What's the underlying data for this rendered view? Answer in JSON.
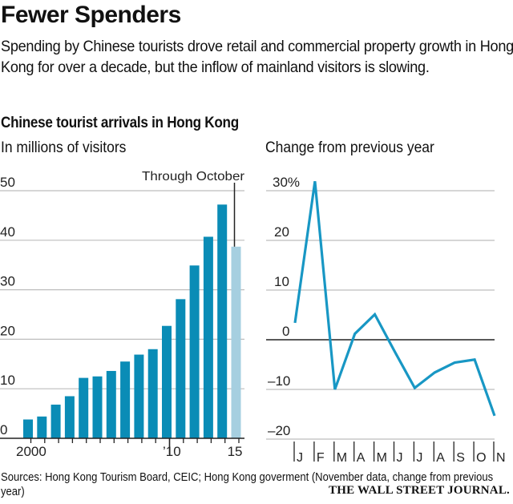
{
  "header": {
    "title": "Fewer Spenders",
    "subtitle": "Spending by Chinese tourists drove retail and commercial property growth in Hong Kong for over a decade, but the inflow of mainland visitors is slowing.",
    "chart_title": "Chinese tourist arrivals in Hong Kong"
  },
  "footer": {
    "source": "Sources: Hong Kong Tourism Board, CEIC; Hong Kong goverment (November data, change from previous year)",
    "brand": "THE WALL STREET JOURNAL."
  },
  "colors": {
    "bar": "#0a8cb6",
    "bar_partial": "#a6cfe0",
    "line": "#1897c4",
    "grid": "#bdbdbd",
    "axis": "#222222"
  },
  "chart_data": [
    {
      "type": "bar",
      "title": "In millions of visitors",
      "xlabel": "",
      "ylabel": "",
      "categories": [
        "2000",
        "2001",
        "2002",
        "2003",
        "2004",
        "2005",
        "2006",
        "2007",
        "2008",
        "2009",
        "2010",
        "2011",
        "2012",
        "2013",
        "2014",
        "2015"
      ],
      "values": [
        3.8,
        4.4,
        6.8,
        8.5,
        12.2,
        12.5,
        13.6,
        15.5,
        16.9,
        18.0,
        22.7,
        28.1,
        34.9,
        40.7,
        47.2,
        38.7
      ],
      "partial_categories": [
        "2015"
      ],
      "annotation": {
        "category": "2015",
        "text": "Through October"
      },
      "ylim": [
        0,
        50
      ],
      "yticks": [
        0,
        10,
        20,
        30,
        40,
        50
      ],
      "ytick_labels": [
        "0",
        "10",
        "20",
        "30",
        "40",
        "50"
      ],
      "xtick_labels": [
        {
          "category": "2000",
          "label": "2000"
        },
        {
          "category": "2010",
          "label": "’10"
        },
        {
          "category": "2015",
          "label": "15"
        }
      ],
      "grid": true
    },
    {
      "type": "line",
      "title": "Change from previous year",
      "xlabel": "",
      "ylabel": "",
      "categories": [
        "J",
        "F",
        "M",
        "A",
        "M",
        "J",
        "J",
        "A",
        "S",
        "O",
        "N"
      ],
      "values": [
        3.4,
        31.9,
        -10.0,
        1.2,
        5.1,
        -2.4,
        -9.7,
        -6.6,
        -4.6,
        -4.0,
        -15.3
      ],
      "unit": "%",
      "ylim": [
        -20,
        30
      ],
      "yticks": [
        -20,
        -10,
        0,
        10,
        20,
        30
      ],
      "ytick_labels": [
        "–20",
        "–10",
        "0",
        "10",
        "20",
        "30%"
      ],
      "grid": true
    }
  ]
}
